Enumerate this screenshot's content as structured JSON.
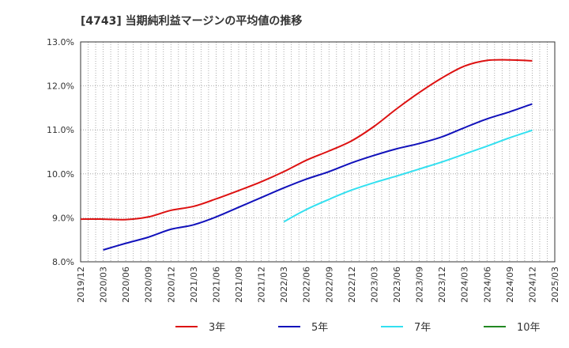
{
  "chart_data": {
    "type": "line",
    "title": "[4743]  当期純利益マージンの平均値の推移",
    "xlabel": "",
    "ylabel": "",
    "x": [
      "2019/12",
      "2020/03",
      "2020/06",
      "2020/09",
      "2020/12",
      "2021/03",
      "2021/06",
      "2021/09",
      "2021/12",
      "2022/03",
      "2022/06",
      "2022/09",
      "2022/12",
      "2023/03",
      "2023/06",
      "2023/09",
      "2023/12",
      "2024/03",
      "2024/06",
      "2024/09",
      "2024/12",
      "2025/03"
    ],
    "ylim": [
      8.0,
      13.0
    ],
    "yticks": [
      "8.0%",
      "9.0%",
      "10.0%",
      "11.0%",
      "12.0%",
      "13.0%"
    ],
    "grid": true,
    "legend_position": "bottom",
    "series": [
      {
        "name": "3年",
        "color": "#dd1111",
        "values": [
          8.97,
          8.97,
          8.96,
          9.02,
          9.17,
          9.26,
          9.43,
          9.62,
          9.82,
          10.05,
          10.31,
          10.52,
          10.75,
          11.08,
          11.48,
          11.85,
          12.18,
          12.45,
          12.58,
          12.59,
          12.57,
          null
        ]
      },
      {
        "name": "5年",
        "color": "#1111bb",
        "values": [
          null,
          8.27,
          8.42,
          8.56,
          8.74,
          8.84,
          9.02,
          9.24,
          9.46,
          9.68,
          9.88,
          10.05,
          10.25,
          10.42,
          10.57,
          10.69,
          10.84,
          11.05,
          11.25,
          11.41,
          11.59,
          null
        ]
      },
      {
        "name": "7年",
        "color": "#33e0f0",
        "values": [
          null,
          null,
          null,
          null,
          null,
          null,
          null,
          null,
          null,
          8.91,
          9.19,
          9.42,
          9.63,
          9.8,
          9.95,
          10.11,
          10.27,
          10.45,
          10.63,
          10.82,
          10.99,
          null
        ]
      },
      {
        "name": "10年",
        "color": "#228822",
        "values": [
          null,
          null,
          null,
          null,
          null,
          null,
          null,
          null,
          null,
          null,
          null,
          null,
          null,
          null,
          null,
          null,
          null,
          null,
          null,
          null,
          null,
          null
        ]
      }
    ]
  }
}
